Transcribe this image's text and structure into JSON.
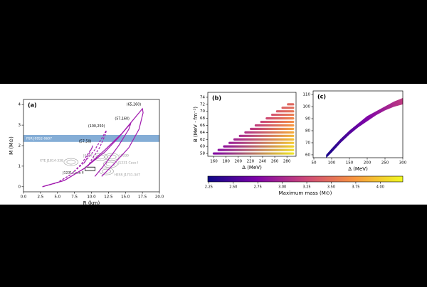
{
  "chart_data": [
    {
      "type": "line",
      "panel": "(a)",
      "xlabel": "R (km)",
      "ylabel": "M (M⊙)",
      "xlim": [
        0,
        20
      ],
      "ylim": [
        -0.25,
        4.25
      ],
      "xticks": [
        {
          "value": 0,
          "label": "0.0"
        },
        2.5,
        {
          "value": 5,
          "label": "5.0"
        },
        7.5,
        {
          "value": 10,
          "label": "10.0"
        },
        12.5,
        {
          "value": 15,
          "label": "15.0"
        },
        17.5,
        {
          "value": 20,
          "label": "20.0"
        }
      ],
      "yticks": [
        0,
        1,
        2,
        3,
        4
      ],
      "band": {
        "label": "PSR J0952-0607",
        "range": [
          2.18,
          2.52
        ],
        "color": "#6f9fcf"
      },
      "series": [
        {
          "name": "(65,260)",
          "color": "#a21caf",
          "dashed": false,
          "x": [
            2.8,
            6,
            9,
            12,
            14.5,
            16.5,
            17.5,
            17.6,
            17,
            15.5,
            13,
            11.5
          ],
          "y": [
            0,
            0.3,
            0.9,
            1.8,
            2.6,
            3.4,
            3.8,
            3.6,
            2.8,
            1.9,
            1.0,
            0.5
          ]
        },
        {
          "name": "(57,160)",
          "color": "#a21caf",
          "dashed": false,
          "x": [
            2.8,
            6,
            9,
            12,
            14,
            15.3,
            15.8,
            15.5,
            14,
            12,
            10.5
          ],
          "y": [
            0,
            0.3,
            0.9,
            1.7,
            2.4,
            2.9,
            3.1,
            2.8,
            2.0,
            1.1,
            0.5
          ]
        },
        {
          "name": "(100,250)",
          "color": "#a21caf",
          "dashed": true,
          "x": [
            2.8,
            5,
            7,
            9,
            10.5,
            11.6,
            12.2,
            12.0,
            11.2,
            10,
            9.5
          ],
          "y": [
            0,
            0.2,
            0.6,
            1.2,
            1.8,
            2.4,
            2.75,
            2.5,
            1.9,
            1.3,
            1.0
          ]
        },
        {
          "name": "(57,50)",
          "color": "#a21caf",
          "dashed": true,
          "x": [
            2.8,
            5,
            7,
            8.5,
            9.5,
            10.1,
            10.2,
            9.8,
            9.2,
            8.8
          ],
          "y": [
            0,
            0.2,
            0.6,
            1.1,
            1.6,
            1.9,
            2.0,
            1.7,
            1.3,
            1.1
          ]
        }
      ],
      "contours": [
        {
          "label": "XTE J1814-338",
          "r": 7.0,
          "m": 1.2,
          "color": "#999999"
        },
        {
          "label": "J0437",
          "r": 11.3,
          "m": 1.45,
          "color": "#999999"
        },
        {
          "label": "J0030",
          "r": 13.0,
          "m": 1.45,
          "color": "#999999"
        },
        {
          "label": "J1231 Case I",
          "r": 12.8,
          "m": 1.1,
          "color": "#999999"
        },
        {
          "label": "J1231 Case II",
          "r": 9.8,
          "m": 0.85,
          "color": "#000000"
        },
        {
          "label": "HESS J1731-347",
          "r": 12.2,
          "m": 0.75,
          "color": "#999999"
        }
      ]
    },
    {
      "type": "rows",
      "panel": "(b)",
      "xlabel": "Δ (MeV)",
      "ylabel": "B (MeV · fm⁻³)",
      "xlim": [
        150,
        295
      ],
      "ylim": [
        57.2,
        75.4
      ],
      "xticks": [
        160,
        180,
        200,
        220,
        240,
        260,
        280
      ],
      "yticks": [
        58,
        60,
        62,
        64,
        66,
        68,
        70,
        72,
        74
      ],
      "B": [
        58,
        59,
        60,
        61,
        62,
        63,
        64,
        65,
        66,
        67,
        68,
        69,
        70,
        71,
        72
      ],
      "start": [
        158,
        166,
        175,
        184,
        192,
        201,
        210,
        219,
        227,
        236,
        245,
        254,
        262,
        271,
        280
      ],
      "end": 292,
      "mass_start": [
        2.75,
        2.8,
        2.85,
        2.9,
        2.95,
        3.0,
        3.05,
        3.1,
        3.15,
        3.2,
        3.25,
        3.3,
        3.35,
        3.4,
        3.45
      ],
      "mass_end": [
        4.15,
        4.1,
        4.05,
        4.0,
        3.95,
        3.9,
        3.85,
        3.8,
        3.75,
        3.7,
        3.65,
        3.6,
        3.55,
        3.5,
        3.45
      ]
    },
    {
      "type": "bandfill",
      "panel": "(c)",
      "xlabel": "Δ (MeV)",
      "xlim": [
        48,
        300
      ],
      "ylim": [
        57.6,
        113
      ],
      "xticks": [
        50,
        100,
        150,
        200,
        250,
        300
      ],
      "yticks": [
        60,
        70,
        80,
        90,
        100,
        110
      ],
      "x": [
        85,
        100,
        125,
        150,
        175,
        200,
        225,
        250,
        275,
        300
      ],
      "lower": [
        57.6,
        62,
        70,
        77,
        83,
        88,
        93,
        97,
        100,
        102
      ],
      "upper": [
        60,
        65,
        73,
        80,
        86,
        92,
        96,
        100,
        104,
        107
      ],
      "mass": [
        2.3,
        2.35,
        2.45,
        2.55,
        2.65,
        2.75,
        2.85,
        2.95,
        3.05,
        3.15
      ]
    },
    {
      "type": "colorbar",
      "colormap": "plasma",
      "label": "Maximum mass (M⊙)",
      "clim": [
        2.24,
        4.23
      ],
      "ticks": [
        2.25,
        {
          "value": 2.5,
          "label": "2.50"
        },
        2.75,
        {
          "value": 3,
          "label": "3.00"
        },
        3.25,
        {
          "value": 3.5,
          "label": "3.50"
        },
        3.75,
        {
          "value": 4,
          "label": "4.00"
        }
      ]
    }
  ]
}
